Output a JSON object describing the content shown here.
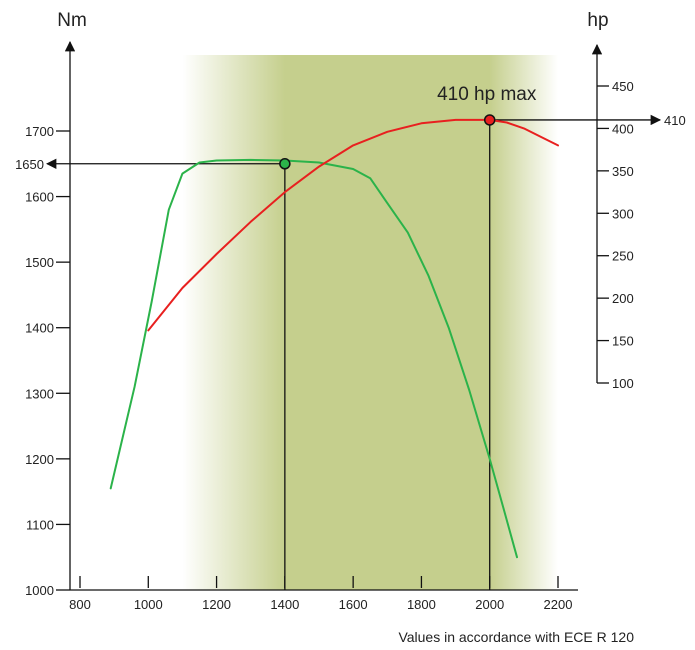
{
  "chart_data": {
    "type": "line",
    "x": {
      "min": 800,
      "max": 2200,
      "ticks": [
        800,
        1000,
        1200,
        1400,
        1600,
        1800,
        2000,
        2200
      ],
      "tick_labels": [
        "800",
        "1000",
        "1200",
        "1400",
        "1600",
        "1800",
        "2000",
        "2200"
      ],
      "label": ""
    },
    "y_left": {
      "unit": "Nm",
      "min": 1000,
      "max": 1700,
      "ticks": [
        1000,
        1100,
        1200,
        1300,
        1400,
        1500,
        1600,
        1700
      ],
      "tick_labels": [
        "1000",
        "1100",
        "1200",
        "1300",
        "1400",
        "1500",
        "1600",
        "1700"
      ]
    },
    "y_right": {
      "unit": "hp",
      "min": 100,
      "max": 450,
      "ticks": [
        100,
        150,
        200,
        250,
        300,
        350,
        400,
        450
      ],
      "tick_labels": [
        "100",
        "150",
        "200",
        "250",
        "300",
        "350",
        "400",
        "450"
      ]
    },
    "series": [
      {
        "axis": "left",
        "color": "#2bb34a",
        "points": [
          [
            890,
            1155
          ],
          [
            960,
            1310
          ],
          [
            1010,
            1440
          ],
          [
            1060,
            1580
          ],
          [
            1100,
            1635
          ],
          [
            1150,
            1652
          ],
          [
            1200,
            1655
          ],
          [
            1300,
            1656
          ],
          [
            1400,
            1655
          ],
          [
            1500,
            1652
          ],
          [
            1600,
            1642
          ],
          [
            1650,
            1628
          ],
          [
            1700,
            1590
          ],
          [
            1760,
            1545
          ],
          [
            1820,
            1480
          ],
          [
            1880,
            1400
          ],
          [
            1940,
            1305
          ],
          [
            2000,
            1200
          ],
          [
            2040,
            1125
          ],
          [
            2080,
            1050
          ]
        ]
      },
      {
        "axis": "right",
        "color": "#e8201f",
        "points": [
          [
            1000,
            162
          ],
          [
            1100,
            212
          ],
          [
            1200,
            252
          ],
          [
            1300,
            290
          ],
          [
            1400,
            325
          ],
          [
            1500,
            355
          ],
          [
            1600,
            380
          ],
          [
            1700,
            396
          ],
          [
            1800,
            406
          ],
          [
            1900,
            410
          ],
          [
            1960,
            410
          ],
          [
            2000,
            410
          ],
          [
            2050,
            407
          ],
          [
            2100,
            400
          ],
          [
            2150,
            390
          ],
          [
            2200,
            380
          ]
        ]
      }
    ],
    "markers": [
      {
        "series": 0,
        "x": 1400,
        "y": 1650,
        "label": "1650",
        "color": "#2bb34a"
      },
      {
        "series": 1,
        "x": 2000,
        "y": 410,
        "label": "410",
        "color": "#e8201f"
      }
    ],
    "annotation": "410 hp max",
    "band": {
      "from": 1100,
      "to": 2200,
      "core_from": 1400,
      "core_to": 2000,
      "color": "#c5cf8d"
    },
    "footnote": "Values in accordance with ECE R 120",
    "grid": false
  }
}
